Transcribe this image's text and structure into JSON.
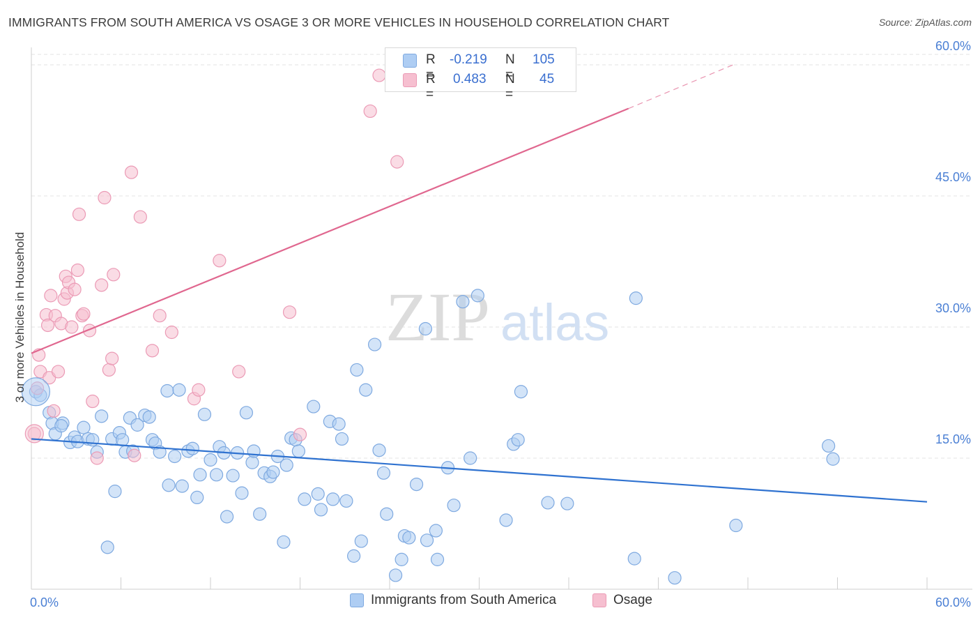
{
  "header": {
    "title": "IMMIGRANTS FROM SOUTH AMERICA VS OSAGE 3 OR MORE VEHICLES IN HOUSEHOLD CORRELATION CHART",
    "source": "Source: ZipAtlas.com"
  },
  "watermark": {
    "zip": "ZIP",
    "atlas": "atlas"
  },
  "stats": {
    "rows": [
      {
        "r_label": "R =",
        "r_value": "-0.219",
        "n_label": "N =",
        "n_value": "105"
      },
      {
        "r_label": "R =",
        "r_value": "0.483",
        "n_label": "N =",
        "n_value": "45"
      }
    ]
  },
  "legend": {
    "items": [
      {
        "label": "Immigrants from South America"
      },
      {
        "label": "Osage"
      }
    ]
  },
  "colors": {
    "blue_fill": "#aecdf3",
    "blue_stroke": "#7ea9e0",
    "blue_line": "#2f72d0",
    "pink_fill": "#f6bfd0",
    "pink_stroke": "#eb9ab5",
    "pink_line": "#e0678f",
    "tick": "#4a7fd4",
    "grid": "#e3e3e3"
  },
  "chart_data": {
    "type": "scatter",
    "title": "IMMIGRANTS FROM SOUTH AMERICA VS OSAGE 3 OR MORE VEHICLES IN HOUSEHOLD CORRELATION CHART",
    "xlabel": "",
    "ylabel": "3 or more Vehicles in Household",
    "xlim": [
      0,
      60
    ],
    "ylim": [
      0,
      60
    ],
    "x_tick_labels": [
      "0.0%",
      "60.0%"
    ],
    "y_ticks": [
      15,
      30,
      45,
      60
    ],
    "y_tick_labels": [
      "15.0%",
      "30.0%",
      "45.0%",
      "60.0%"
    ],
    "grid": true,
    "legend_position": "bottom",
    "series": [
      {
        "name": "Immigrants from South America",
        "color": "#aecdf3",
        "points": [
          [
            0.3,
            22.6
          ],
          [
            0.6,
            22.2
          ],
          [
            1.2,
            20.2
          ],
          [
            1.4,
            19.0
          ],
          [
            1.6,
            17.8
          ],
          [
            2.1,
            19.0
          ],
          [
            2.0,
            18.7
          ],
          [
            2.6,
            16.8
          ],
          [
            2.9,
            17.4
          ],
          [
            3.1,
            16.9
          ],
          [
            3.5,
            18.5
          ],
          [
            3.8,
            17.2
          ],
          [
            4.1,
            17.1
          ],
          [
            4.4,
            15.7
          ],
          [
            4.7,
            19.8
          ],
          [
            5.1,
            4.8
          ],
          [
            5.4,
            17.2
          ],
          [
            5.6,
            11.2
          ],
          [
            5.9,
            17.9
          ],
          [
            6.1,
            17.1
          ],
          [
            6.3,
            15.7
          ],
          [
            6.6,
            19.6
          ],
          [
            6.8,
            15.8
          ],
          [
            7.1,
            18.8
          ],
          [
            7.6,
            19.9
          ],
          [
            7.9,
            19.7
          ],
          [
            8.1,
            17.1
          ],
          [
            8.3,
            16.7
          ],
          [
            8.6,
            15.7
          ],
          [
            9.1,
            22.7
          ],
          [
            9.2,
            11.9
          ],
          [
            9.6,
            15.2
          ],
          [
            9.9,
            22.8
          ],
          [
            10.1,
            11.8
          ],
          [
            10.5,
            15.8
          ],
          [
            10.8,
            16.1
          ],
          [
            11.1,
            10.5
          ],
          [
            11.3,
            13.1
          ],
          [
            11.6,
            20.0
          ],
          [
            12.0,
            14.8
          ],
          [
            12.4,
            13.1
          ],
          [
            12.6,
            16.3
          ],
          [
            12.9,
            15.6
          ],
          [
            13.1,
            8.3
          ],
          [
            13.5,
            13.0
          ],
          [
            13.8,
            15.6
          ],
          [
            14.1,
            11.0
          ],
          [
            14.4,
            20.2
          ],
          [
            14.8,
            14.5
          ],
          [
            14.9,
            15.8
          ],
          [
            15.3,
            8.6
          ],
          [
            15.6,
            13.3
          ],
          [
            16.0,
            12.9
          ],
          [
            16.2,
            13.4
          ],
          [
            16.5,
            15.2
          ],
          [
            16.9,
            5.4
          ],
          [
            17.1,
            14.2
          ],
          [
            17.4,
            17.3
          ],
          [
            17.7,
            17.1
          ],
          [
            17.9,
            15.8
          ],
          [
            18.3,
            10.3
          ],
          [
            18.9,
            20.9
          ],
          [
            19.2,
            10.9
          ],
          [
            19.4,
            9.1
          ],
          [
            20.0,
            19.2
          ],
          [
            20.2,
            10.3
          ],
          [
            20.6,
            18.9
          ],
          [
            20.8,
            17.2
          ],
          [
            21.1,
            10.1
          ],
          [
            21.6,
            3.8
          ],
          [
            21.8,
            25.1
          ],
          [
            22.1,
            5.5
          ],
          [
            22.4,
            22.8
          ],
          [
            23.0,
            28.0
          ],
          [
            23.3,
            15.9
          ],
          [
            23.6,
            13.3
          ],
          [
            23.8,
            8.6
          ],
          [
            24.4,
            1.6
          ],
          [
            24.8,
            3.4
          ],
          [
            25.0,
            6.1
          ],
          [
            25.3,
            5.9
          ],
          [
            25.8,
            12.0
          ],
          [
            26.4,
            29.8
          ],
          [
            26.5,
            5.6
          ],
          [
            27.1,
            6.7
          ],
          [
            27.2,
            3.4
          ],
          [
            27.9,
            13.9
          ],
          [
            28.3,
            9.6
          ],
          [
            28.9,
            32.9
          ],
          [
            29.4,
            15.0
          ],
          [
            29.9,
            33.6
          ],
          [
            31.8,
            7.9
          ],
          [
            32.3,
            16.6
          ],
          [
            32.6,
            17.1
          ],
          [
            32.8,
            22.6
          ],
          [
            34.6,
            9.9
          ],
          [
            35.9,
            9.8
          ],
          [
            40.4,
            3.5
          ],
          [
            40.5,
            33.3
          ],
          [
            43.1,
            1.3
          ],
          [
            47.2,
            7.3
          ],
          [
            53.4,
            16.4
          ],
          [
            53.7,
            14.9
          ]
        ]
      },
      {
        "name": "Osage",
        "color": "#f6bfd0",
        "points": [
          [
            0.2,
            17.8
          ],
          [
            0.4,
            23.0
          ],
          [
            0.5,
            26.8
          ],
          [
            0.6,
            24.9
          ],
          [
            1.0,
            31.4
          ],
          [
            1.1,
            30.2
          ],
          [
            1.2,
            24.2
          ],
          [
            1.3,
            33.6
          ],
          [
            1.5,
            20.4
          ],
          [
            1.6,
            31.3
          ],
          [
            1.8,
            24.9
          ],
          [
            2.0,
            30.4
          ],
          [
            2.2,
            33.2
          ],
          [
            2.3,
            35.8
          ],
          [
            2.4,
            33.9
          ],
          [
            2.5,
            35.1
          ],
          [
            2.7,
            30.0
          ],
          [
            2.9,
            34.3
          ],
          [
            3.1,
            36.5
          ],
          [
            3.2,
            42.9
          ],
          [
            3.4,
            31.3
          ],
          [
            3.5,
            31.5
          ],
          [
            3.9,
            29.6
          ],
          [
            4.1,
            21.5
          ],
          [
            4.4,
            15.0
          ],
          [
            4.7,
            34.8
          ],
          [
            4.9,
            44.8
          ],
          [
            5.2,
            25.1
          ],
          [
            5.4,
            26.4
          ],
          [
            5.5,
            36.0
          ],
          [
            6.7,
            47.7
          ],
          [
            6.9,
            15.3
          ],
          [
            7.3,
            42.6
          ],
          [
            8.1,
            27.3
          ],
          [
            8.6,
            31.3
          ],
          [
            9.4,
            29.4
          ],
          [
            10.9,
            21.8
          ],
          [
            11.2,
            22.8
          ],
          [
            12.6,
            37.6
          ],
          [
            13.9,
            24.9
          ],
          [
            17.3,
            31.7
          ],
          [
            18.0,
            17.7
          ],
          [
            22.7,
            54.7
          ],
          [
            23.3,
            58.8
          ],
          [
            24.5,
            48.9
          ]
        ]
      }
    ],
    "trend_lines": [
      {
        "series": "Immigrants from South America",
        "x": [
          0,
          60
        ],
        "y": [
          17.2,
          10.0
        ]
      },
      {
        "series": "Osage",
        "x": [
          0,
          40
        ],
        "y": [
          27.0,
          55.0
        ],
        "dashed_extension_to": [
          47,
          60.0
        ]
      }
    ]
  }
}
